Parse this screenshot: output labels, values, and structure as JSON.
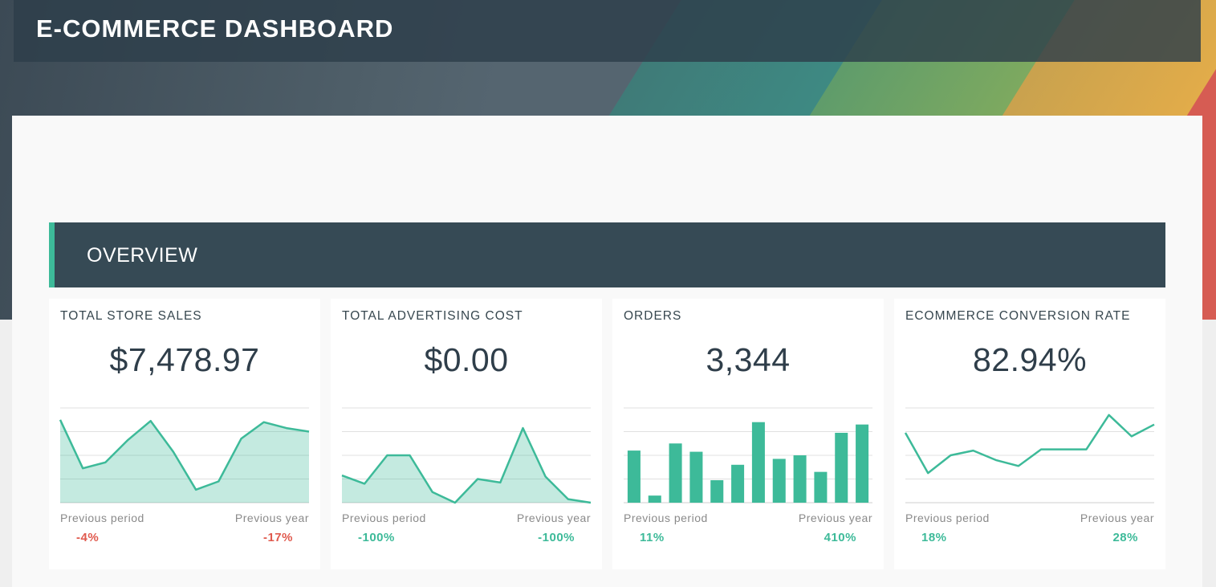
{
  "header": {
    "title": "E-COMMERCE DASHBOARD"
  },
  "section": {
    "title": "OVERVIEW"
  },
  "colors": {
    "accent": "#3dba99",
    "negative": "#e05a4e",
    "header_bg": "#364a55",
    "value_text": "#2f3e4a"
  },
  "widgets": [
    {
      "title": "TOTAL STORE SALES",
      "value": "$7,478.97",
      "chart_type": "area",
      "previous_period_label": "Previous period",
      "previous_period": "-4%",
      "previous_period_trend": "negative",
      "previous_year_label": "Previous year",
      "previous_year": "-17%",
      "previous_year_trend": "negative"
    },
    {
      "title": "TOTAL ADVERTISING COST",
      "value": "$0.00",
      "chart_type": "area",
      "previous_period_label": "Previous period",
      "previous_period": "-100%",
      "previous_period_trend": "positive",
      "previous_year_label": "Previous year",
      "previous_year": "-100%",
      "previous_year_trend": "positive"
    },
    {
      "title": "ORDERS",
      "value": "3,344",
      "chart_type": "bar",
      "previous_period_label": "Previous period",
      "previous_period": "11%",
      "previous_period_trend": "positive",
      "previous_year_label": "Previous year",
      "previous_year": "410%",
      "previous_year_trend": "positive"
    },
    {
      "title": "ECOMMERCE CONVERSION RATE",
      "value": "82.94%",
      "chart_type": "line",
      "previous_period_label": "Previous period",
      "previous_period": "18%",
      "previous_period_trend": "positive",
      "previous_year_label": "Previous year",
      "previous_year": "28%",
      "previous_year_trend": "positive"
    }
  ],
  "chart_data": [
    {
      "type": "area",
      "ylim": [
        0,
        4
      ],
      "grid": true,
      "values": [
        3.5,
        1.45,
        1.7,
        2.65,
        3.45,
        2.15,
        0.55,
        0.9,
        2.7,
        3.4,
        3.15,
        3.0
      ]
    },
    {
      "type": "area",
      "ylim": [
        0,
        4
      ],
      "grid": true,
      "values": [
        1.15,
        0.8,
        2.0,
        2.0,
        0.45,
        0.0,
        1.0,
        0.85,
        3.15,
        1.1,
        0.15,
        0.0
      ]
    },
    {
      "type": "bar",
      "ylim": [
        0,
        4
      ],
      "grid": true,
      "values": [
        2.2,
        0.3,
        2.5,
        2.15,
        0.95,
        1.6,
        3.4,
        1.85,
        2.0,
        1.3,
        2.95,
        3.3
      ]
    },
    {
      "type": "line",
      "ylim": [
        0,
        4
      ],
      "grid": true,
      "values": [
        2.95,
        1.25,
        2.0,
        2.2,
        1.8,
        1.55,
        2.25,
        2.25,
        2.25,
        3.7,
        2.8,
        3.3
      ]
    }
  ]
}
